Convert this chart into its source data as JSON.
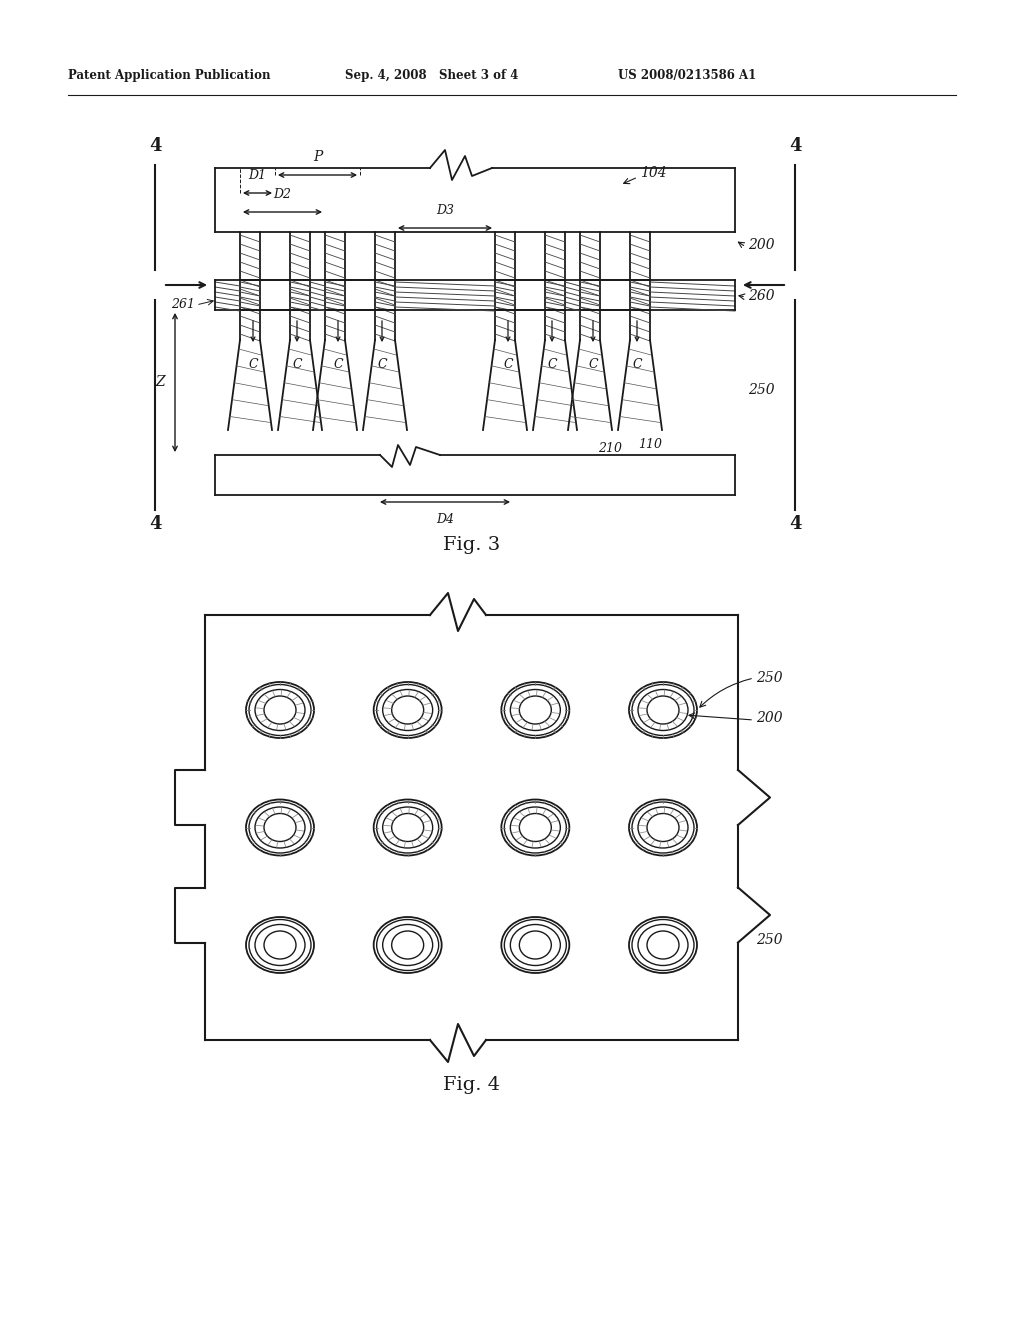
{
  "header_left": "Patent Application Publication",
  "header_mid": "Sep. 4, 2008   Sheet 3 of 4",
  "header_right": "US 2008/0213586 A1",
  "fig3_label": "Fig. 3",
  "fig4_label": "Fig. 4",
  "bg_color": "#ffffff",
  "line_color": "#1a1a1a"
}
